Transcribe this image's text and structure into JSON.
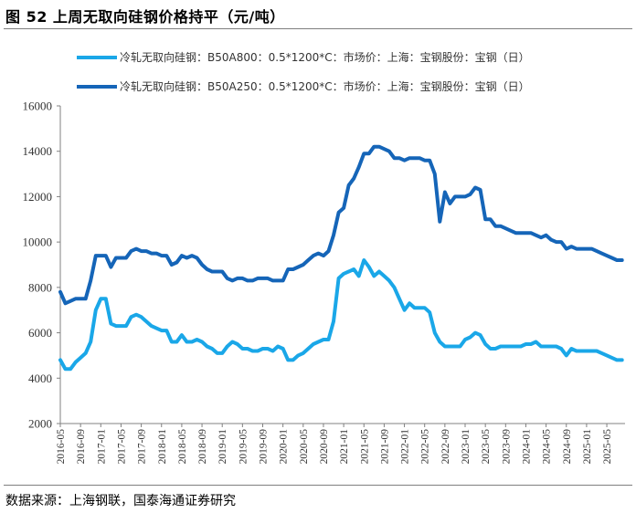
{
  "header": {
    "title": "图 52  上周无取向硅钢价格持平（元/吨）"
  },
  "footer": {
    "source": "数据来源：上海钢联，国泰海通证券研究"
  },
  "colors": {
    "series_light": "#1aa7e8",
    "series_dark": "#1565b8",
    "axis": "#808080",
    "rule": "#7f7f7f"
  },
  "chart_data": {
    "type": "line",
    "title": "",
    "xlabel": "",
    "ylabel": "",
    "ylim": [
      2000,
      16000
    ],
    "yticks": [
      2000,
      4000,
      6000,
      8000,
      10000,
      12000,
      14000,
      16000
    ],
    "ytick_labels": [
      "2000",
      "4000",
      "6000",
      "8000",
      "10000",
      "12000",
      "14000",
      "16000"
    ],
    "grid": false,
    "legend_position": "top",
    "xtick_labels": [
      "2016-05",
      "2016-09",
      "2017-01",
      "2017-05",
      "2017-09",
      "2018-01",
      "2018-05",
      "2018-09",
      "2019-01",
      "2019-05",
      "2019-09",
      "2020-01",
      "2020-05",
      "2020-09",
      "2021-01",
      "2021-05",
      "2021-09",
      "2022-01",
      "2022-05",
      "2022-09",
      "2023-01",
      "2023-05",
      "2023-09",
      "2024-01",
      "2024-05",
      "2024-09",
      "2025-01",
      "2025-05"
    ],
    "series": [
      {
        "name": "冷轧无取向硅钢：B50A800：0.5*1200*C：市场价：上海：宝钢股份：宝钢（日）",
        "color_key": "series_light",
        "points": [
          [
            "2016-05",
            4800
          ],
          [
            "2016-06",
            4400
          ],
          [
            "2016-07",
            4400
          ],
          [
            "2016-08",
            4700
          ],
          [
            "2016-09",
            4900
          ],
          [
            "2016-10",
            5100
          ],
          [
            "2016-11",
            5600
          ],
          [
            "2016-12",
            7000
          ],
          [
            "2017-01",
            7500
          ],
          [
            "2017-02",
            7500
          ],
          [
            "2017-03",
            6400
          ],
          [
            "2017-04",
            6300
          ],
          [
            "2017-05",
            6300
          ],
          [
            "2017-06",
            6300
          ],
          [
            "2017-07",
            6700
          ],
          [
            "2017-08",
            6800
          ],
          [
            "2017-09",
            6700
          ],
          [
            "2017-10",
            6500
          ],
          [
            "2017-11",
            6300
          ],
          [
            "2017-12",
            6200
          ],
          [
            "2018-01",
            6100
          ],
          [
            "2018-02",
            6100
          ],
          [
            "2018-03",
            5600
          ],
          [
            "2018-04",
            5600
          ],
          [
            "2018-05",
            5900
          ],
          [
            "2018-06",
            5600
          ],
          [
            "2018-07",
            5600
          ],
          [
            "2018-08",
            5700
          ],
          [
            "2018-09",
            5600
          ],
          [
            "2018-10",
            5400
          ],
          [
            "2018-11",
            5300
          ],
          [
            "2018-12",
            5100
          ],
          [
            "2019-01",
            5100
          ],
          [
            "2019-02",
            5400
          ],
          [
            "2019-03",
            5600
          ],
          [
            "2019-04",
            5500
          ],
          [
            "2019-05",
            5300
          ],
          [
            "2019-06",
            5300
          ],
          [
            "2019-07",
            5200
          ],
          [
            "2019-08",
            5200
          ],
          [
            "2019-09",
            5300
          ],
          [
            "2019-10",
            5300
          ],
          [
            "2019-11",
            5200
          ],
          [
            "2019-12",
            5400
          ],
          [
            "2020-01",
            5300
          ],
          [
            "2020-02",
            4800
          ],
          [
            "2020-03",
            4800
          ],
          [
            "2020-04",
            5000
          ],
          [
            "2020-05",
            5100
          ],
          [
            "2020-06",
            5300
          ],
          [
            "2020-07",
            5500
          ],
          [
            "2020-08",
            5600
          ],
          [
            "2020-09",
            5700
          ],
          [
            "2020-10",
            5700
          ],
          [
            "2020-11",
            6500
          ],
          [
            "2020-12",
            8400
          ],
          [
            "2021-01",
            8600
          ],
          [
            "2021-02",
            8700
          ],
          [
            "2021-03",
            8800
          ],
          [
            "2021-04",
            8500
          ],
          [
            "2021-05",
            9200
          ],
          [
            "2021-06",
            8900
          ],
          [
            "2021-07",
            8500
          ],
          [
            "2021-08",
            8700
          ],
          [
            "2021-09",
            8500
          ],
          [
            "2021-10",
            8300
          ],
          [
            "2021-11",
            8000
          ],
          [
            "2021-12",
            7500
          ],
          [
            "2022-01",
            7000
          ],
          [
            "2022-02",
            7300
          ],
          [
            "2022-03",
            7100
          ],
          [
            "2022-04",
            7100
          ],
          [
            "2022-05",
            7100
          ],
          [
            "2022-06",
            6900
          ],
          [
            "2022-07",
            6000
          ],
          [
            "2022-08",
            5600
          ],
          [
            "2022-09",
            5400
          ],
          [
            "2022-10",
            5400
          ],
          [
            "2022-11",
            5400
          ],
          [
            "2022-12",
            5400
          ],
          [
            "2023-01",
            5700
          ],
          [
            "2023-02",
            5800
          ],
          [
            "2023-03",
            6000
          ],
          [
            "2023-04",
            5900
          ],
          [
            "2023-05",
            5500
          ],
          [
            "2023-06",
            5300
          ],
          [
            "2023-07",
            5300
          ],
          [
            "2023-08",
            5400
          ],
          [
            "2023-09",
            5400
          ],
          [
            "2023-10",
            5400
          ],
          [
            "2023-11",
            5400
          ],
          [
            "2023-12",
            5400
          ],
          [
            "2024-01",
            5500
          ],
          [
            "2024-02",
            5500
          ],
          [
            "2024-03",
            5600
          ],
          [
            "2024-04",
            5400
          ],
          [
            "2024-05",
            5400
          ],
          [
            "2024-06",
            5400
          ],
          [
            "2024-07",
            5400
          ],
          [
            "2024-08",
            5300
          ],
          [
            "2024-09",
            5000
          ],
          [
            "2024-10",
            5300
          ],
          [
            "2024-11",
            5200
          ],
          [
            "2024-12",
            5200
          ],
          [
            "2025-01",
            5200
          ],
          [
            "2025-02",
            5200
          ],
          [
            "2025-03",
            5200
          ],
          [
            "2025-04",
            5100
          ],
          [
            "2025-05",
            5000
          ],
          [
            "2025-06",
            4900
          ],
          [
            "2025-07",
            4800
          ],
          [
            "2025-08",
            4800
          ]
        ]
      },
      {
        "name": "冷轧无取向硅钢：B50A250：0.5*1200*C：市场价：上海：宝钢股份：宝钢（日）",
        "color_key": "series_dark",
        "points": [
          [
            "2016-05",
            7800
          ],
          [
            "2016-06",
            7300
          ],
          [
            "2016-07",
            7400
          ],
          [
            "2016-08",
            7500
          ],
          [
            "2016-09",
            7500
          ],
          [
            "2016-10",
            7500
          ],
          [
            "2016-11",
            8300
          ],
          [
            "2016-12",
            9400
          ],
          [
            "2017-01",
            9400
          ],
          [
            "2017-02",
            9400
          ],
          [
            "2017-03",
            8900
          ],
          [
            "2017-04",
            9300
          ],
          [
            "2017-05",
            9300
          ],
          [
            "2017-06",
            9300
          ],
          [
            "2017-07",
            9600
          ],
          [
            "2017-08",
            9700
          ],
          [
            "2017-09",
            9600
          ],
          [
            "2017-10",
            9600
          ],
          [
            "2017-11",
            9500
          ],
          [
            "2017-12",
            9500
          ],
          [
            "2018-01",
            9400
          ],
          [
            "2018-02",
            9400
          ],
          [
            "2018-03",
            9000
          ],
          [
            "2018-04",
            9100
          ],
          [
            "2018-05",
            9400
          ],
          [
            "2018-06",
            9300
          ],
          [
            "2018-07",
            9400
          ],
          [
            "2018-08",
            9300
          ],
          [
            "2018-09",
            9000
          ],
          [
            "2018-10",
            8800
          ],
          [
            "2018-11",
            8700
          ],
          [
            "2018-12",
            8700
          ],
          [
            "2019-01",
            8700
          ],
          [
            "2019-02",
            8400
          ],
          [
            "2019-03",
            8300
          ],
          [
            "2019-04",
            8400
          ],
          [
            "2019-05",
            8400
          ],
          [
            "2019-06",
            8300
          ],
          [
            "2019-07",
            8300
          ],
          [
            "2019-08",
            8400
          ],
          [
            "2019-09",
            8400
          ],
          [
            "2019-10",
            8400
          ],
          [
            "2019-11",
            8300
          ],
          [
            "2019-12",
            8300
          ],
          [
            "2020-01",
            8300
          ],
          [
            "2020-02",
            8800
          ],
          [
            "2020-03",
            8800
          ],
          [
            "2020-04",
            8900
          ],
          [
            "2020-05",
            9000
          ],
          [
            "2020-06",
            9200
          ],
          [
            "2020-07",
            9400
          ],
          [
            "2020-08",
            9500
          ],
          [
            "2020-09",
            9400
          ],
          [
            "2020-10",
            9600
          ],
          [
            "2020-11",
            10300
          ],
          [
            "2020-12",
            11300
          ],
          [
            "2021-01",
            11500
          ],
          [
            "2021-02",
            12500
          ],
          [
            "2021-03",
            12800
          ],
          [
            "2021-04",
            13300
          ],
          [
            "2021-05",
            13900
          ],
          [
            "2021-06",
            13900
          ],
          [
            "2021-07",
            14200
          ],
          [
            "2021-08",
            14200
          ],
          [
            "2021-09",
            14100
          ],
          [
            "2021-10",
            14000
          ],
          [
            "2021-11",
            13700
          ],
          [
            "2021-12",
            13700
          ],
          [
            "2022-01",
            13600
          ],
          [
            "2022-02",
            13700
          ],
          [
            "2022-03",
            13700
          ],
          [
            "2022-04",
            13700
          ],
          [
            "2022-05",
            13600
          ],
          [
            "2022-06",
            13600
          ],
          [
            "2022-07",
            13000
          ],
          [
            "2022-08",
            10900
          ],
          [
            "2022-09",
            12200
          ],
          [
            "2022-10",
            11700
          ],
          [
            "2022-11",
            12000
          ],
          [
            "2022-12",
            12000
          ],
          [
            "2023-01",
            12000
          ],
          [
            "2023-02",
            12100
          ],
          [
            "2023-03",
            12400
          ],
          [
            "2023-04",
            12300
          ],
          [
            "2023-05",
            11000
          ],
          [
            "2023-06",
            11000
          ],
          [
            "2023-07",
            10700
          ],
          [
            "2023-08",
            10700
          ],
          [
            "2023-09",
            10600
          ],
          [
            "2023-10",
            10500
          ],
          [
            "2023-11",
            10400
          ],
          [
            "2023-12",
            10400
          ],
          [
            "2024-01",
            10400
          ],
          [
            "2024-02",
            10400
          ],
          [
            "2024-03",
            10300
          ],
          [
            "2024-04",
            10200
          ],
          [
            "2024-05",
            10300
          ],
          [
            "2024-06",
            10100
          ],
          [
            "2024-07",
            10000
          ],
          [
            "2024-08",
            10000
          ],
          [
            "2024-09",
            9700
          ],
          [
            "2024-10",
            9800
          ],
          [
            "2024-11",
            9700
          ],
          [
            "2024-12",
            9700
          ],
          [
            "2025-01",
            9700
          ],
          [
            "2025-02",
            9700
          ],
          [
            "2025-03",
            9600
          ],
          [
            "2025-04",
            9500
          ],
          [
            "2025-05",
            9400
          ],
          [
            "2025-06",
            9300
          ],
          [
            "2025-07",
            9200
          ],
          [
            "2025-08",
            9200
          ]
        ]
      }
    ]
  }
}
